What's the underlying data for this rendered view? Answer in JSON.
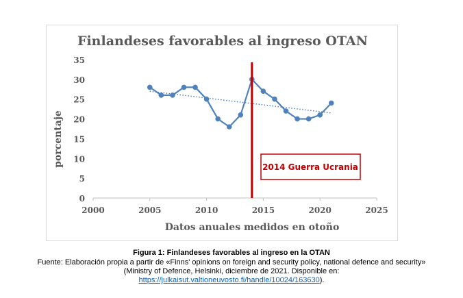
{
  "chart_data": {
    "type": "line",
    "title": "Finlandeses favorables al ingreso OTAN",
    "xlabel": "Datos anuales medidos en otoño",
    "ylabel": "porcentaje",
    "xlim": [
      2000,
      2025
    ],
    "ylim": [
      0,
      35
    ],
    "x_ticks": [
      "2000",
      "2005",
      "2010",
      "2015",
      "2020",
      "2025"
    ],
    "y_ticks": [
      "0",
      "5",
      "10",
      "15",
      "20",
      "25",
      "30",
      "35"
    ],
    "grid": false,
    "colors": {
      "series": "#4f81bd",
      "marker": "#4f81bd",
      "trend": "#4f81bd",
      "event": "#c00000"
    },
    "series": [
      {
        "x": [
          2005,
          2006,
          2007,
          2008,
          2009,
          2010,
          2011,
          2012,
          2013,
          2014,
          2015,
          2016,
          2017,
          2018,
          2019,
          2020,
          2021
        ],
        "values": [
          28,
          26,
          26,
          28,
          28,
          25,
          20,
          18,
          21,
          30,
          27,
          25,
          22,
          20,
          20,
          21,
          24
        ]
      }
    ],
    "trendline": {
      "style": "dotted",
      "x": [
        2005,
        2021
      ],
      "values": [
        27,
        21.5
      ]
    },
    "annotations": [
      {
        "type": "vertical-line",
        "x": 2014
      },
      {
        "type": "text-box",
        "text": "2014 Guerra Ucrania"
      }
    ]
  },
  "caption": {
    "title": "Figura 1: Finlandeses favorables al ingreso en la OTAN",
    "source_line1": "Fuente: Elaboración propia a partir de «Finns' opinions on foreign and security policy, national defence and security»",
    "source_line2": "(Ministry of Defence, Helsinki, diciembre de 2021. Disponible en:",
    "link": "https://julkaisut.valtioneuvosto.fi/handle/10024/163630",
    "link_suffix": ")."
  }
}
